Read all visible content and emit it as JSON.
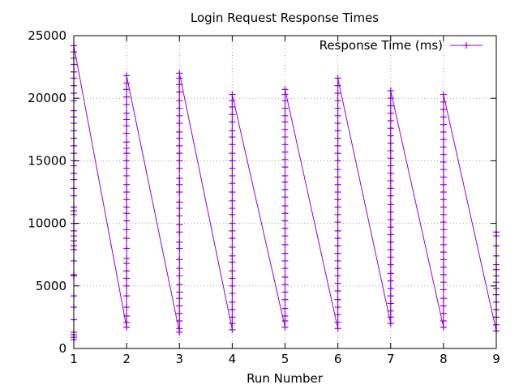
{
  "chart_data": {
    "type": "line",
    "title": "Login Request Response Times",
    "xlabel": "Run Number",
    "ylabel": "",
    "xlim": [
      1,
      9
    ],
    "ylim": [
      0,
      25000
    ],
    "x_ticks": [
      "1",
      "2",
      "3",
      "4",
      "5",
      "6",
      "7",
      "8",
      "9"
    ],
    "y_ticks": [
      "0",
      "5000",
      "10000",
      "15000",
      "20000",
      "25000"
    ],
    "grid": true,
    "legend_position": "top-right",
    "color": "#9400d3",
    "series": [
      {
        "name": "Response Time (ms)",
        "runs": [
          {
            "run": 1,
            "values": [
              700,
              900,
              1100,
              1300,
              2300,
              3300,
              4200,
              5800,
              5900,
              7000,
              7900,
              8200,
              8600,
              9000,
              9400,
              10000,
              10700,
              11000,
              11300,
              12200,
              12800,
              13500,
              14000,
              14600,
              15000,
              15600,
              16200,
              16800,
              17400,
              18000,
              18500,
              19000,
              19800,
              20400,
              21000,
              21600,
              22100,
              22700,
              23200,
              23700,
              24200
            ]
          },
          {
            "run": 2,
            "values": [
              1700,
              2100,
              2600,
              3300,
              4200,
              5000,
              5600,
              6200,
              6800,
              7200,
              8000,
              8800,
              9500,
              10200,
              10800,
              11300,
              11900,
              12500,
              13100,
              13800,
              14400,
              15000,
              15600,
              16000,
              16500,
              17200,
              17800,
              18300,
              18800,
              19500,
              20100,
              20700,
              21200,
              21800
            ]
          },
          {
            "run": 3,
            "values": [
              1300,
              1600,
              2200,
              2800,
              3400,
              4000,
              4500,
              5100,
              5800,
              6400,
              7100,
              8000,
              8500,
              9300,
              9900,
              10600,
              11200,
              11700,
              12500,
              13100,
              13600,
              14400,
              15000,
              15600,
              16200,
              16800,
              17300,
              18000,
              18600,
              19200,
              19800,
              20500,
              21100,
              21600,
              22000
            ]
          },
          {
            "run": 4,
            "values": [
              1500,
              2000,
              2500,
              3100,
              3700,
              4400,
              5000,
              5600,
              6200,
              6900,
              7400,
              8100,
              8800,
              9400,
              10000,
              10700,
              11200,
              11800,
              12500,
              13200,
              13800,
              14400,
              15000,
              15600,
              16300,
              16900,
              17400,
              18100,
              18700,
              19300,
              19800,
              20300
            ]
          },
          {
            "run": 5,
            "values": [
              1700,
              2200,
              2600,
              3200,
              3900,
              4500,
              5100,
              5700,
              6400,
              7000,
              7600,
              8300,
              9000,
              9600,
              10200,
              10800,
              11400,
              12100,
              12700,
              13300,
              13800,
              14500,
              15100,
              15700,
              16300,
              16900,
              17500,
              18100,
              18600,
              19200,
              19800,
              20300,
              20700
            ]
          },
          {
            "run": 6,
            "values": [
              1600,
              2100,
              2700,
              3300,
              3900,
              4600,
              5200,
              5800,
              6400,
              7000,
              7600,
              8200,
              8800,
              9400,
              10100,
              10700,
              11300,
              11900,
              12500,
              13100,
              13700,
              14300,
              15000,
              15600,
              16200,
              16800,
              17400,
              18000,
              18600,
              19200,
              19800,
              20400,
              21000,
              21600
            ]
          },
          {
            "run": 7,
            "values": [
              2000,
              2500,
              3000,
              3600,
              4200,
              4800,
              5400,
              6000,
              6700,
              7300,
              7900,
              8500,
              9100,
              9700,
              10300,
              10900,
              11500,
              12200,
              12800,
              13400,
              14000,
              14600,
              15200,
              15800,
              16400,
              17000,
              17600,
              18200,
              18800,
              19400,
              20000,
              20600
            ]
          },
          {
            "run": 8,
            "values": [
              1700,
              2200,
              2800,
              3400,
              4000,
              4700,
              5300,
              5900,
              6500,
              7100,
              7700,
              8300,
              8900,
              9500,
              10100,
              10700,
              11300,
              11900,
              12500,
              13100,
              13700,
              14300,
              14900,
              15500,
              16100,
              16700,
              17300,
              17900,
              18500,
              19100,
              19700,
              20300
            ]
          },
          {
            "run": 9,
            "values": [
              1400,
              1900,
              2500,
              3100,
              3700,
              4300,
              4800,
              5300,
              5800,
              6300,
              6700,
              7400,
              8200,
              9000,
              9300
            ]
          }
        ]
      }
    ]
  }
}
